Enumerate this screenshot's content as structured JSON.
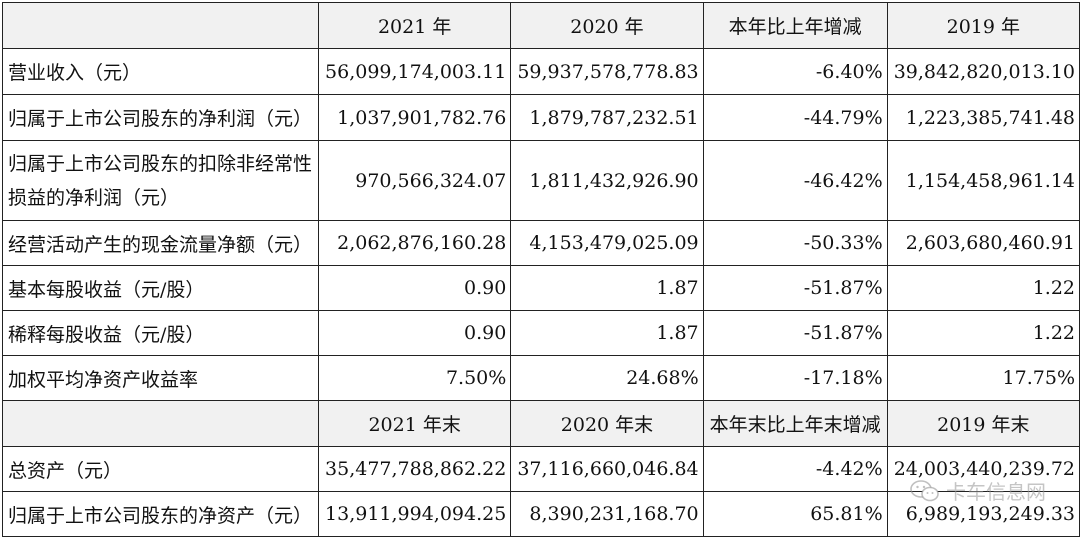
{
  "header1": [
    "2021 年",
    "2020 年",
    "本年比上年增减",
    "2019 年"
  ],
  "rows1": [
    {
      "label": "营业收入（元）",
      "v2021": "56,099,174,003.11",
      "v2020": "59,937,578,778.83",
      "change": "-6.40%",
      "v2019": "39,842,820,013.10"
    },
    {
      "label": "归属于上市公司股东的净利润（元）",
      "v2021": "1,037,901,782.76",
      "v2020": "1,879,787,232.51",
      "change": "-44.79%",
      "v2019": "1,223,385,741.48"
    },
    {
      "label": "归属于上市公司股东的扣除非经常性损益的净利润（元）",
      "v2021": "970,566,324.07",
      "v2020": "1,811,432,926.90",
      "change": "-46.42%",
      "v2019": "1,154,458,961.14"
    },
    {
      "label": "经营活动产生的现金流量净额（元）",
      "v2021": "2,062,876,160.28",
      "v2020": "4,153,479,025.09",
      "change": "-50.33%",
      "v2019": "2,603,680,460.91"
    },
    {
      "label": "基本每股收益（元/股）",
      "v2021": "0.90",
      "v2020": "1.87",
      "change": "-51.87%",
      "v2019": "1.22"
    },
    {
      "label": "稀释每股收益（元/股）",
      "v2021": "0.90",
      "v2020": "1.87",
      "change": "-51.87%",
      "v2019": "1.22"
    },
    {
      "label": "加权平均净资产收益率",
      "v2021": "7.50%",
      "v2020": "24.68%",
      "change": "-17.18%",
      "v2019": "17.75%"
    }
  ],
  "header2": [
    "2021 年末",
    "2020 年末",
    "本年末比上年末增减",
    "2019 年末"
  ],
  "rows2": [
    {
      "label": "总资产（元）",
      "v2021": "35,477,788,862.22",
      "v2020": "37,116,660,046.84",
      "change": "-4.42%",
      "v2019": "24,003,440,239.72"
    },
    {
      "label": "归属于上市公司股东的净资产（元）",
      "v2021": "13,911,994,094.25",
      "v2020": "8,390,231,168.70",
      "change": "65.81%",
      "v2019": "6,989,193,249.33"
    }
  ],
  "watermark": {
    "text": "卡车信息网",
    "icon": "wechat-icon"
  }
}
